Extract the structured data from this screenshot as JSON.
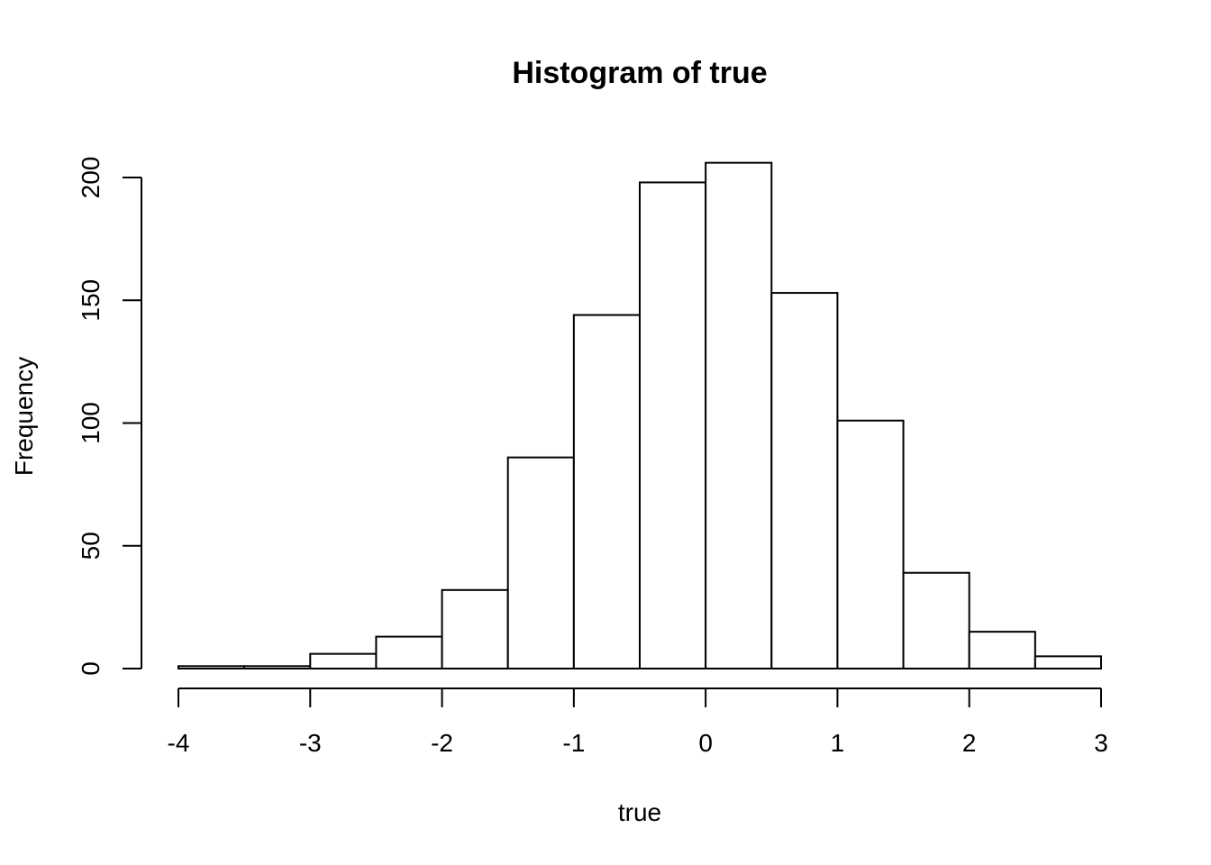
{
  "chart_data": {
    "type": "bar",
    "title": "Histogram of true",
    "xlabel": "true",
    "ylabel": "Frequency",
    "bins": [
      {
        "start": -4.0,
        "end": -3.5,
        "count": 1
      },
      {
        "start": -3.5,
        "end": -3.0,
        "count": 1
      },
      {
        "start": -3.0,
        "end": -2.5,
        "count": 6
      },
      {
        "start": -2.5,
        "end": -2.0,
        "count": 13
      },
      {
        "start": -2.0,
        "end": -1.5,
        "count": 32
      },
      {
        "start": -1.5,
        "end": -1.0,
        "count": 86
      },
      {
        "start": -1.0,
        "end": -0.5,
        "count": 144
      },
      {
        "start": -0.5,
        "end": 0.0,
        "count": 198
      },
      {
        "start": 0.0,
        "end": 0.5,
        "count": 206
      },
      {
        "start": 0.5,
        "end": 1.0,
        "count": 153
      },
      {
        "start": 1.0,
        "end": 1.5,
        "count": 101
      },
      {
        "start": 1.5,
        "end": 2.0,
        "count": 39
      },
      {
        "start": 2.0,
        "end": 2.5,
        "count": 15
      },
      {
        "start": 2.5,
        "end": 3.0,
        "count": 5
      }
    ],
    "xlim": [
      -4,
      3
    ],
    "ylim": [
      0,
      200
    ],
    "xticks": [
      "-4",
      "-3",
      "-2",
      "-1",
      "0",
      "1",
      "2",
      "3"
    ],
    "yticks": [
      "0",
      "50",
      "100",
      "150",
      "200"
    ],
    "grid": false,
    "bar_fill": "#ffffff",
    "bar_edge": "#000000"
  }
}
